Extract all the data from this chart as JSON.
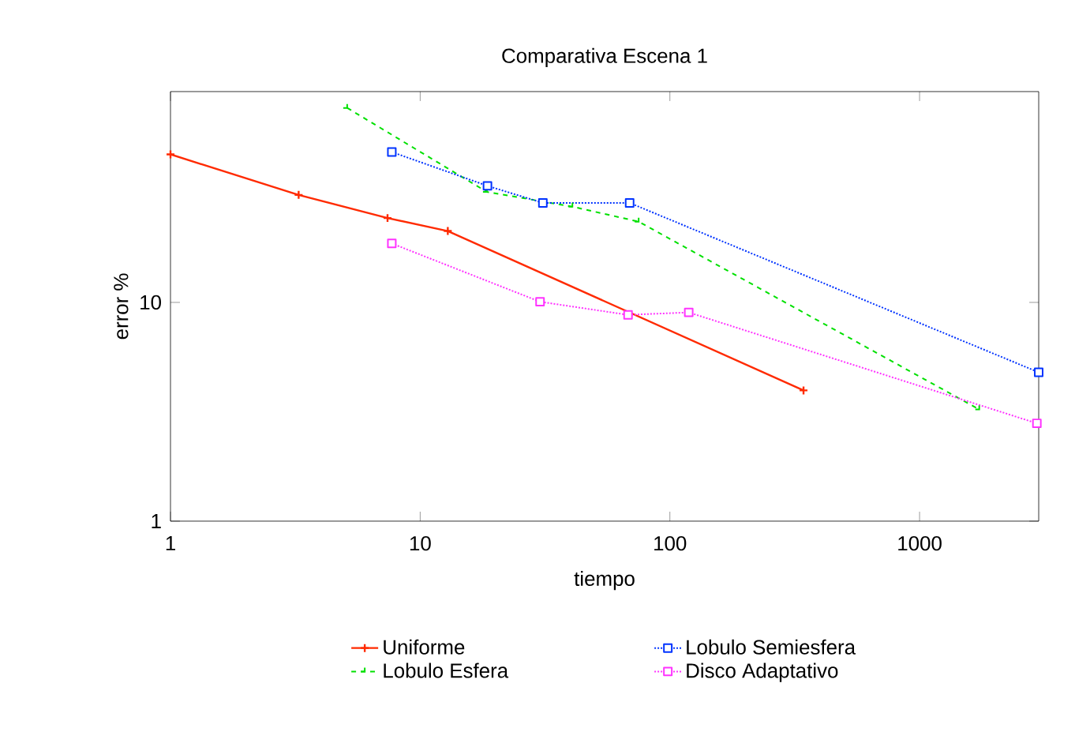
{
  "chart_data": {
    "type": "line",
    "title": "Comparativa Escena 1",
    "xlabel": "tiempo",
    "ylabel": "error %",
    "log": "xy",
    "grid": false,
    "legend": "bottom",
    "xlim": [
      1,
      3000
    ],
    "ylim": [
      1,
      92
    ],
    "xticks": [
      1,
      10,
      100,
      1000
    ],
    "yticks": [
      1,
      10
    ],
    "series": [
      {
        "name": "Uniforme",
        "color": "#ff2a00",
        "line_style": "solid",
        "marker": "cross",
        "x": [
          1,
          3.26,
          7.4,
          12.9,
          343
        ],
        "values": [
          47.5,
          31,
          24.3,
          21.2,
          3.96
        ]
      },
      {
        "name": "Lobulo Esfera",
        "color": "#00e000",
        "line_style": "dashed",
        "marker": "cross",
        "x": [
          5.1,
          18.5,
          40.7,
          75,
          1734
        ],
        "values": [
          77.5,
          32,
          27.4,
          23.4,
          3.24
        ]
      },
      {
        "name": "Lobulo Semiesfera",
        "color": "#0033ff",
        "line_style": "dotted",
        "marker": "square",
        "x": [
          7.7,
          18.6,
          31,
          69,
          3000
        ],
        "values": [
          48.7,
          34.1,
          28.5,
          28.5,
          4.79
        ]
      },
      {
        "name": "Disco Adaptativo",
        "color": "#ff33ff",
        "line_style": "dotted",
        "marker": "square",
        "x": [
          7.7,
          30.2,
          68,
          119,
          2950
        ],
        "values": [
          18.6,
          10.07,
          8.77,
          9.0,
          2.8
        ]
      }
    ]
  }
}
